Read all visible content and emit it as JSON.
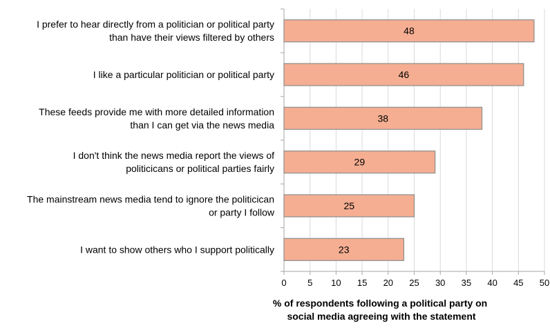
{
  "chart_data": {
    "type": "bar",
    "orientation": "horizontal",
    "title": "",
    "xlabel": "% of respondents following a political party on social media agreeing with the statement",
    "ylabel": "",
    "categories": [
      "I prefer to hear directly from a politician or political party than have their views filtered by others",
      "I like a particular politician or political party",
      "These feeds provide me with more detailed information than I can get via the news media",
      "I don't think the news media report the views of politicicans or political parties fairly",
      "The mainstream news media tend to ignore the politicican or party I follow",
      "I want to show others who I support politically"
    ],
    "values": [
      48,
      46,
      38,
      29,
      25,
      23
    ],
    "xlim": [
      0,
      50
    ],
    "xticks": [
      0,
      5,
      10,
      15,
      20,
      25,
      30,
      35,
      40,
      45,
      50
    ],
    "grid": true,
    "legend": "none",
    "bar_color": "#f5ae92",
    "bar_edge_color": "#8c8c8c",
    "grid_color": "#d9d9d9",
    "axis_color": "#a6a6a6",
    "text_color": "#000000"
  }
}
